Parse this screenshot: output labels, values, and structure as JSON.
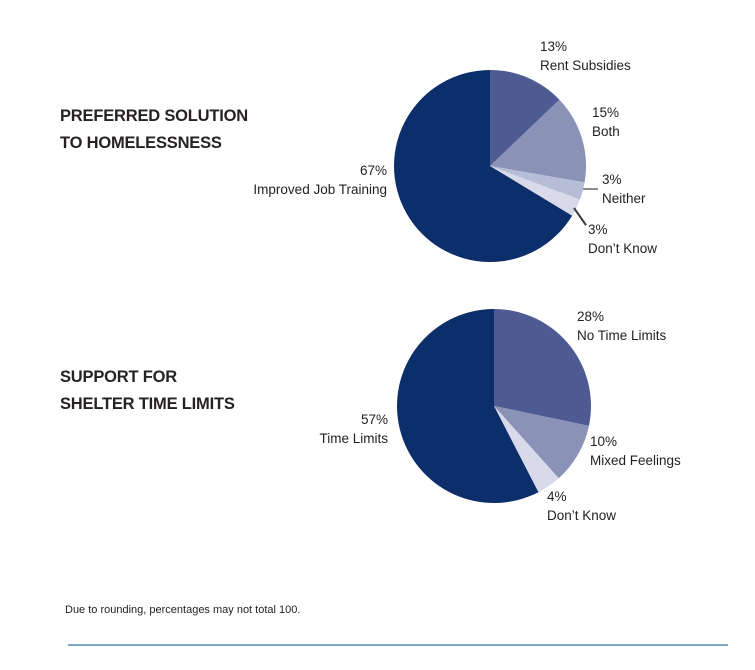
{
  "page": {
    "footnote": "Due to rounding, percentages may not total 100."
  },
  "colors": {
    "navy": "#0c2e6b",
    "slate_blue": "#4d5b92",
    "medium_blue": "#8a92b8",
    "pale_blue": "#b6bdd6",
    "very_pale_blue": "#d8daea",
    "rule_line": "#7ea6c5",
    "text": "#231f20"
  },
  "chart_data": [
    {
      "type": "pie",
      "title": "PREFERRED SOLUTION TO HOMELESSNESS",
      "title_lines": [
        "PREFERRED SOLUTION",
        "TO HOMELESSNESS"
      ],
      "start_angle_deg": 0,
      "direction": "clockwise",
      "labels_position": "outside",
      "slices": [
        {
          "label": "Rent Subsidies",
          "pct": 13,
          "pct_label": "13%",
          "color": "#4d5b92"
        },
        {
          "label": "Both",
          "pct": 15,
          "pct_label": "15%",
          "color": "#8a92b8"
        },
        {
          "label": "Neither",
          "pct": 3,
          "pct_label": "3%",
          "color": "#b6bdd6"
        },
        {
          "label": "Don’t Know",
          "pct": 3,
          "pct_label": "3%",
          "color": "#d8daea"
        },
        {
          "label": "Improved Job Training",
          "pct": 67,
          "pct_label": "67%",
          "color": "#0c2e6b"
        }
      ]
    },
    {
      "type": "pie",
      "title": "SUPPORT FOR SHELTER TIME LIMITS",
      "title_lines": [
        "SUPPORT FOR",
        "SHELTER TIME LIMITS"
      ],
      "start_angle_deg": 0,
      "direction": "clockwise",
      "labels_position": "outside",
      "slices": [
        {
          "label": "No Time Limits",
          "pct": 28,
          "pct_label": "28%",
          "color": "#4d5b92"
        },
        {
          "label": "Mixed Feelings",
          "pct": 10,
          "pct_label": "10%",
          "color": "#8a92b8"
        },
        {
          "label": "Don’t Know",
          "pct": 4,
          "pct_label": "4%",
          "color": "#d8daea"
        },
        {
          "label": "Time Limits",
          "pct": 57,
          "pct_label": "57%",
          "color": "#0c2e6b"
        }
      ]
    }
  ]
}
